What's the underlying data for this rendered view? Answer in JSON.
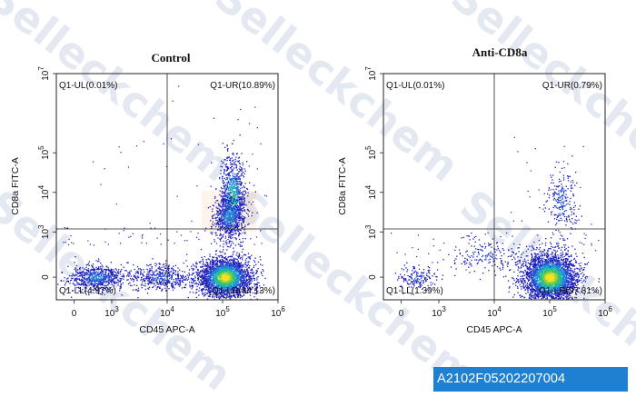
{
  "chart_data": [
    {
      "type": "scatter",
      "plot_style": "flow cytometry density dot plot",
      "title": "Control",
      "xlabel": "CD45 APC-A",
      "ylabel": "CD8a FITC-A",
      "x_scale": "biexponential",
      "y_scale": "biexponential",
      "xlim": [
        -1000,
        1000000
      ],
      "ylim": [
        -1000,
        10000000
      ],
      "x_ticks": [
        {
          "value": 0,
          "base": "0",
          "exp": ""
        },
        {
          "value": 1000,
          "base": "10",
          "exp": "3"
        },
        {
          "value": 10000,
          "base": "10",
          "exp": "4"
        },
        {
          "value": 100000,
          "base": "10",
          "exp": "5"
        },
        {
          "value": 1000000,
          "base": "10",
          "exp": "6"
        }
      ],
      "y_ticks": [
        {
          "value": 0,
          "base": "0",
          "exp": ""
        },
        {
          "value": 1000,
          "base": "10",
          "exp": "3"
        },
        {
          "value": 10000,
          "base": "10",
          "exp": "4"
        },
        {
          "value": 100000,
          "base": "10",
          "exp": "5"
        },
        {
          "value": 10000000,
          "base": "10",
          "exp": "7"
        }
      ],
      "gate": {
        "x": 10000,
        "y": 2000
      },
      "quadrants": [
        {
          "name": "Q1-UL",
          "label": "Q1-UL(0.01%)",
          "percent": 0.01
        },
        {
          "name": "Q1-UR",
          "label": "Q1-UR(10.89%)",
          "percent": 10.89
        },
        {
          "name": "Q1-LL",
          "label": "Q1-LL(4.97%)",
          "percent": 4.97
        },
        {
          "name": "Q1-LR",
          "label": "Q1-LR(84.13%)",
          "percent": 84.13
        }
      ]
    },
    {
      "type": "scatter",
      "plot_style": "flow cytometry density dot plot",
      "title": "Anti-CD8a",
      "xlabel": "CD45 APC-A",
      "ylabel": "CD8a FITC-A",
      "x_scale": "biexponential",
      "y_scale": "biexponential",
      "xlim": [
        -1000,
        1000000
      ],
      "ylim": [
        -1000,
        10000000
      ],
      "x_ticks": [
        {
          "value": 0,
          "base": "0",
          "exp": ""
        },
        {
          "value": 1000,
          "base": "10",
          "exp": "3"
        },
        {
          "value": 10000,
          "base": "10",
          "exp": "4"
        },
        {
          "value": 100000,
          "base": "10",
          "exp": "5"
        },
        {
          "value": 1000000,
          "base": "10",
          "exp": "6"
        }
      ],
      "y_ticks": [
        {
          "value": 0,
          "base": "0",
          "exp": ""
        },
        {
          "value": 1000,
          "base": "10",
          "exp": "3"
        },
        {
          "value": 10000,
          "base": "10",
          "exp": "4"
        },
        {
          "value": 100000,
          "base": "10",
          "exp": "5"
        },
        {
          "value": 10000000,
          "base": "10",
          "exp": "7"
        }
      ],
      "gate": {
        "x": 10000,
        "y": 2000
      },
      "quadrants": [
        {
          "name": "Q1-UL",
          "label": "Q1-UL(0.01%)",
          "percent": 0.01
        },
        {
          "name": "Q1-UR",
          "label": "Q1-UR(0.79%)",
          "percent": 0.79
        },
        {
          "name": "Q1-LL",
          "label": "Q1-LL(1.39%)",
          "percent": 1.39
        },
        {
          "name": "Q1-LR",
          "label": "Q1-LR(97.81%)",
          "percent": 97.81
        }
      ]
    }
  ],
  "sample_id": "A2102F05202207004",
  "watermark": {
    "text": "Selleckchem",
    "color": "#cfd6e6",
    "accent": "#f5a25a"
  },
  "colors": {
    "sample_id_bg": "#1f7fd0",
    "density_low": "#1a1ac8",
    "density_high": "#f0e020"
  }
}
